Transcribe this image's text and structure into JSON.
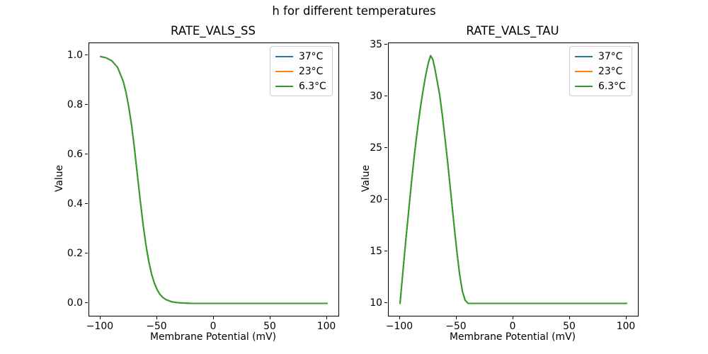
{
  "figure": {
    "suptitle": "h for different temperatures",
    "background": "#ffffff",
    "spine_color": "#000000"
  },
  "chart_data": [
    {
      "type": "line",
      "title": "RATE_VALS_SS",
      "xlabel": "Membrane Potential (mV)",
      "ylabel": "Value",
      "xlim": [
        -110,
        110
      ],
      "ylim": [
        -0.05,
        1.05
      ],
      "grid": false,
      "xticks": {
        "values": [
          -100,
          -50,
          0,
          50,
          100
        ],
        "labels": [
          "−100",
          "−50",
          "0",
          "50",
          "100"
        ]
      },
      "yticks": {
        "values": [
          0.0,
          0.2,
          0.4,
          0.6,
          0.8,
          1.0
        ],
        "labels": [
          "0.0",
          "0.2",
          "0.4",
          "0.6",
          "0.8",
          "1.0"
        ]
      },
      "legend": {
        "position": "upper right",
        "entries": [
          {
            "label": "37°C",
            "color": "#1f77b4"
          },
          {
            "label": "23°C",
            "color": "#ff7f0e"
          },
          {
            "label": "6.3°C",
            "color": "#2ca02c"
          }
        ]
      },
      "series": [
        {
          "name": "37°C",
          "color": "#1f77b4"
        },
        {
          "name": "23°C",
          "color": "#ff7f0e"
        },
        {
          "name": "6.3°C",
          "color": "#2ca02c"
        }
      ],
      "series_overlap": true,
      "x": [
        -100,
        -95,
        -90,
        -85,
        -80,
        -77.5,
        -75,
        -72.5,
        -70,
        -67.5,
        -65,
        -62.5,
        -60,
        -57.5,
        -55,
        -52.5,
        -50,
        -47.5,
        -45,
        -42.5,
        -40,
        -37.5,
        -35,
        -32.5,
        -30,
        -25,
        -20,
        -15,
        -10,
        -5,
        0,
        10,
        20,
        30,
        40,
        50,
        60,
        70,
        80,
        90,
        100
      ],
      "y": [
        0.996,
        0.991,
        0.979,
        0.953,
        0.897,
        0.851,
        0.791,
        0.716,
        0.622,
        0.52,
        0.417,
        0.321,
        0.238,
        0.171,
        0.119,
        0.082,
        0.055,
        0.036,
        0.024,
        0.016,
        0.011,
        0.007,
        0.005,
        0.003,
        0.002,
        0.001,
        0,
        0,
        0,
        0,
        0,
        0,
        0,
        0,
        0,
        0,
        0,
        0,
        0,
        0,
        0
      ]
    },
    {
      "type": "line",
      "title": "RATE_VALS_TAU",
      "xlabel": "Membrane Potential (mV)",
      "ylabel": "Value",
      "xlim": [
        -110,
        110
      ],
      "ylim": [
        8.8,
        35.2
      ],
      "grid": false,
      "xticks": {
        "values": [
          -100,
          -50,
          0,
          50,
          100
        ],
        "labels": [
          "−100",
          "−50",
          "0",
          "50",
          "100"
        ]
      },
      "yticks": {
        "values": [
          10,
          15,
          20,
          25,
          30,
          35
        ],
        "labels": [
          "10",
          "15",
          "20",
          "25",
          "30",
          "35"
        ]
      },
      "legend": {
        "position": "upper right",
        "entries": [
          {
            "label": "37°C",
            "color": "#1f77b4"
          },
          {
            "label": "23°C",
            "color": "#ff7f0e"
          },
          {
            "label": "6.3°C",
            "color": "#2ca02c"
          }
        ]
      },
      "series": [
        {
          "name": "37°C",
          "color": "#1f77b4"
        },
        {
          "name": "23°C",
          "color": "#ff7f0e"
        },
        {
          "name": "6.3°C",
          "color": "#2ca02c"
        }
      ],
      "series_overlap": true,
      "x": [
        -100,
        -97.5,
        -95,
        -92.5,
        -90,
        -87.5,
        -85,
        -82.5,
        -80,
        -77.5,
        -75,
        -73,
        -71,
        -69,
        -67.5,
        -65,
        -62.5,
        -60,
        -57.5,
        -55,
        -52.5,
        -50,
        -47.5,
        -45,
        -42.5,
        -40,
        -35,
        -30,
        -25,
        -20,
        -15,
        -10,
        -5,
        0,
        10,
        20,
        30,
        40,
        50,
        60,
        70,
        80,
        90,
        100
      ],
      "y": [
        10,
        13,
        16,
        18.8,
        21.6,
        24.2,
        26.5,
        28.6,
        30.4,
        32,
        33.3,
        34,
        33.6,
        32.6,
        31.7,
        30.2,
        28.1,
        25.7,
        23.2,
        20.5,
        17.8,
        15.2,
        12.9,
        11.2,
        10.3,
        10,
        10,
        10,
        10,
        10,
        10,
        10,
        10,
        10,
        10,
        10,
        10,
        10,
        10,
        10,
        10,
        10,
        10,
        10
      ]
    }
  ]
}
